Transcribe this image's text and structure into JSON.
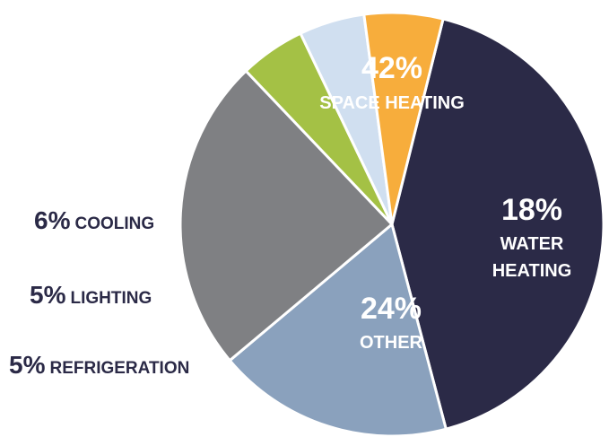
{
  "chart_data": {
    "type": "pie",
    "title": "",
    "slices": [
      {
        "label": "SPACE HEATING",
        "label_lines": [
          "SPACE HEATING"
        ],
        "value": 42,
        "pct_text": "42%",
        "color": "#2b2a47",
        "text_color": "#ffffff",
        "label_placement": "inside"
      },
      {
        "label": "WATER HEATING",
        "label_lines": [
          "WATER",
          "HEATING"
        ],
        "value": 18,
        "pct_text": "18%",
        "color": "#8aa1bd",
        "text_color": "#ffffff",
        "label_placement": "inside"
      },
      {
        "label": "OTHER",
        "label_lines": [
          "OTHER"
        ],
        "value": 24,
        "pct_text": "24%",
        "color": "#7f8083",
        "text_color": "#ffffff",
        "label_placement": "inside"
      },
      {
        "label": "REFRIGERATION",
        "label_lines": [
          "REFRIGERATION"
        ],
        "value": 5,
        "pct_text": "5%",
        "color": "#a4c145",
        "text_color": "#2b2a47",
        "label_placement": "outside-left"
      },
      {
        "label": "LIGHTING",
        "label_lines": [
          "LIGHTING"
        ],
        "value": 5,
        "pct_text": "5%",
        "color": "#d0dff0",
        "text_color": "#2b2a47",
        "label_placement": "outside-left"
      },
      {
        "label": "COOLING",
        "label_lines": [
          "COOLING"
        ],
        "value": 6,
        "pct_text": "6%",
        "color": "#f7ad3c",
        "text_color": "#2b2a47",
        "label_placement": "outside-left"
      }
    ]
  }
}
